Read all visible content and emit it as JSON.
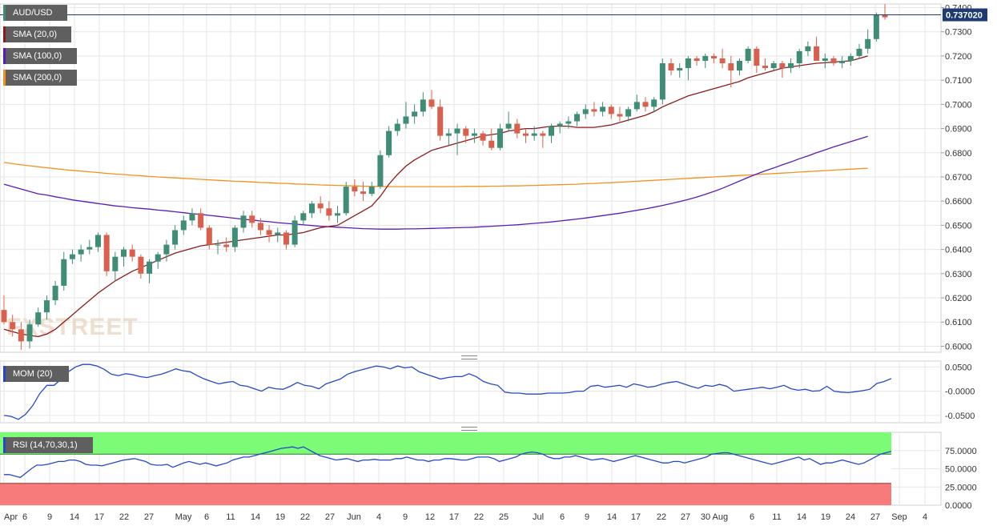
{
  "colors": {
    "up": "#3f8c77",
    "down": "#d9604c",
    "sma20": "#8b1c1c",
    "sma100": "#5b1bb8",
    "sma200": "#f2921e",
    "mom": "#2448c8",
    "rsi": "#2448c8",
    "rsi_overbought": "#7cfc76",
    "rsi_oversold": "#f77b7b",
    "price_tag": "#1f3b73",
    "legend_bg": "#5f5f5f",
    "grid": "#e6e6e6"
  },
  "legend": {
    "symbol": "AUD/USD",
    "sma20": "SMA (20,0)",
    "sma100": "SMA (100,0)",
    "sma200": "SMA (200,0)",
    "mom": "MOM (20)",
    "rsi": "RSI (14,70,30,1)"
  },
  "watermark": "FXSTREET",
  "current_price": "0.737020",
  "chart_data": [
    {
      "type": "candlestick",
      "title": "AUD/USD",
      "ylim": [
        0.5975,
        0.7415
      ],
      "yticks": [
        "0.7400",
        "0.7300",
        "0.7200",
        "0.7100",
        "0.7000",
        "0.6900",
        "0.6800",
        "0.6700",
        "0.6600",
        "0.6500",
        "0.6400",
        "0.6300",
        "0.6200",
        "0.6100",
        "0.6000"
      ],
      "x_labels": [
        "Apr",
        "6",
        "9",
        "14",
        "17",
        "22",
        "27",
        "May",
        "6",
        "11",
        "14",
        "19",
        "22",
        "27",
        "Jun",
        "4",
        "9",
        "12",
        "17",
        "22",
        "25",
        "Jul",
        "6",
        "9",
        "14",
        "17",
        "22",
        "27",
        "30 Aug",
        "6",
        "11",
        "14",
        "19",
        "24",
        "27",
        "Sep",
        "4"
      ],
      "candles": [
        [
          0.615,
          0.621,
          0.609,
          0.61
        ],
        [
          0.61,
          0.613,
          0.604,
          0.607
        ],
        [
          0.607,
          0.61,
          0.5985,
          0.602
        ],
        [
          0.602,
          0.611,
          0.599,
          0.609
        ],
        [
          0.609,
          0.616,
          0.608,
          0.614
        ],
        [
          0.614,
          0.621,
          0.611,
          0.619
        ],
        [
          0.619,
          0.627,
          0.617,
          0.625
        ],
        [
          0.625,
          0.639,
          0.623,
          0.636
        ],
        [
          0.636,
          0.64,
          0.634,
          0.638
        ],
        [
          0.638,
          0.642,
          0.635,
          0.64
        ],
        [
          0.64,
          0.644,
          0.638,
          0.641
        ],
        [
          0.641,
          0.647,
          0.639,
          0.646
        ],
        [
          0.646,
          0.647,
          0.629,
          0.631
        ],
        [
          0.631,
          0.639,
          0.627,
          0.637
        ],
        [
          0.637,
          0.641,
          0.633,
          0.64
        ],
        [
          0.64,
          0.642,
          0.635,
          0.637
        ],
        [
          0.637,
          0.638,
          0.628,
          0.63
        ],
        [
          0.63,
          0.636,
          0.626,
          0.635
        ],
        [
          0.635,
          0.639,
          0.632,
          0.638
        ],
        [
          0.638,
          0.644,
          0.635,
          0.642
        ],
        [
          0.642,
          0.65,
          0.64,
          0.648
        ],
        [
          0.648,
          0.654,
          0.646,
          0.652
        ],
        [
          0.652,
          0.657,
          0.65,
          0.655
        ],
        [
          0.655,
          0.657,
          0.648,
          0.649
        ],
        [
          0.649,
          0.65,
          0.64,
          0.642
        ],
        [
          0.642,
          0.644,
          0.638,
          0.642
        ],
        [
          0.642,
          0.645,
          0.639,
          0.641
        ],
        [
          0.641,
          0.65,
          0.639,
          0.649
        ],
        [
          0.649,
          0.656,
          0.647,
          0.654
        ],
        [
          0.654,
          0.656,
          0.649,
          0.651
        ],
        [
          0.651,
          0.653,
          0.646,
          0.648
        ],
        [
          0.648,
          0.65,
          0.643,
          0.646
        ],
        [
          0.646,
          0.649,
          0.643,
          0.647
        ],
        [
          0.647,
          0.648,
          0.64,
          0.642
        ],
        [
          0.642,
          0.654,
          0.641,
          0.652
        ],
        [
          0.652,
          0.656,
          0.65,
          0.655
        ],
        [
          0.655,
          0.66,
          0.653,
          0.659
        ],
        [
          0.659,
          0.662,
          0.655,
          0.657
        ],
        [
          0.657,
          0.66,
          0.652,
          0.654
        ],
        [
          0.654,
          0.658,
          0.651,
          0.655
        ],
        [
          0.655,
          0.668,
          0.654,
          0.666
        ],
        [
          0.666,
          0.669,
          0.662,
          0.664
        ],
        [
          0.664,
          0.668,
          0.66,
          0.663
        ],
        [
          0.663,
          0.668,
          0.662,
          0.666
        ],
        [
          0.666,
          0.681,
          0.665,
          0.679
        ],
        [
          0.679,
          0.691,
          0.678,
          0.689
        ],
        [
          0.689,
          0.694,
          0.687,
          0.692
        ],
        [
          0.692,
          0.701,
          0.69,
          0.695
        ],
        [
          0.695,
          0.7,
          0.692,
          0.697
        ],
        [
          0.697,
          0.705,
          0.695,
          0.702
        ],
        [
          0.702,
          0.706,
          0.698,
          0.699
        ],
        [
          0.699,
          0.702,
          0.685,
          0.687
        ],
        [
          0.687,
          0.69,
          0.683,
          0.688
        ],
        [
          0.688,
          0.692,
          0.679,
          0.69
        ],
        [
          0.69,
          0.691,
          0.684,
          0.687
        ],
        [
          0.687,
          0.69,
          0.684,
          0.688
        ],
        [
          0.688,
          0.689,
          0.683,
          0.685
        ],
        [
          0.685,
          0.69,
          0.681,
          0.682
        ],
        [
          0.682,
          0.692,
          0.681,
          0.69
        ],
        [
          0.69,
          0.697,
          0.689,
          0.692
        ],
        [
          0.692,
          0.694,
          0.686,
          0.688
        ],
        [
          0.688,
          0.69,
          0.684,
          0.687
        ],
        [
          0.687,
          0.691,
          0.685,
          0.688
        ],
        [
          0.688,
          0.689,
          0.682,
          0.687
        ],
        [
          0.687,
          0.692,
          0.684,
          0.691
        ],
        [
          0.691,
          0.693,
          0.688,
          0.692
        ],
        [
          0.692,
          0.695,
          0.69,
          0.693
        ],
        [
          0.693,
          0.697,
          0.691,
          0.696
        ],
        [
          0.696,
          0.7,
          0.694,
          0.698
        ],
        [
          0.698,
          0.701,
          0.695,
          0.697
        ],
        [
          0.697,
          0.701,
          0.695,
          0.699
        ],
        [
          0.699,
          0.7,
          0.694,
          0.696
        ],
        [
          0.696,
          0.699,
          0.693,
          0.695
        ],
        [
          0.695,
          0.699,
          0.693,
          0.698
        ],
        [
          0.698,
          0.704,
          0.697,
          0.701
        ],
        [
          0.701,
          0.703,
          0.697,
          0.699
        ],
        [
          0.699,
          0.703,
          0.697,
          0.702
        ],
        [
          0.702,
          0.719,
          0.7,
          0.717
        ],
        [
          0.717,
          0.719,
          0.712,
          0.714
        ],
        [
          0.714,
          0.717,
          0.711,
          0.715
        ],
        [
          0.715,
          0.72,
          0.71,
          0.719
        ],
        [
          0.719,
          0.72,
          0.716,
          0.718
        ],
        [
          0.718,
          0.721,
          0.715,
          0.72
        ],
        [
          0.72,
          0.721,
          0.717,
          0.719
        ],
        [
          0.719,
          0.723,
          0.715,
          0.717
        ],
        [
          0.717,
          0.72,
          0.707,
          0.714
        ],
        [
          0.714,
          0.719,
          0.712,
          0.718
        ],
        [
          0.718,
          0.724,
          0.717,
          0.723
        ],
        [
          0.723,
          0.724,
          0.713,
          0.716
        ],
        [
          0.716,
          0.719,
          0.714,
          0.715
        ],
        [
          0.715,
          0.718,
          0.714,
          0.717
        ],
        [
          0.717,
          0.718,
          0.711,
          0.715
        ],
        [
          0.715,
          0.719,
          0.713,
          0.717
        ],
        [
          0.717,
          0.723,
          0.715,
          0.722
        ],
        [
          0.722,
          0.726,
          0.72,
          0.724
        ],
        [
          0.724,
          0.728,
          0.718,
          0.718
        ],
        [
          0.718,
          0.721,
          0.715,
          0.719
        ],
        [
          0.719,
          0.72,
          0.716,
          0.717
        ],
        [
          0.717,
          0.72,
          0.715,
          0.718
        ],
        [
          0.718,
          0.721,
          0.716,
          0.72
        ],
        [
          0.72,
          0.725,
          0.719,
          0.723
        ],
        [
          0.723,
          0.731,
          0.721,
          0.727
        ],
        [
          0.727,
          0.738,
          0.726,
          0.737
        ],
        [
          0.737,
          0.7415,
          0.735,
          0.736
        ]
      ],
      "sma20": [
        0.607,
        0.606,
        0.605,
        0.6045,
        0.604,
        0.605,
        0.607,
        0.61,
        0.613,
        0.616,
        0.619,
        0.622,
        0.6245,
        0.627,
        0.629,
        0.631,
        0.6325,
        0.634,
        0.6355,
        0.637,
        0.6385,
        0.6395,
        0.6405,
        0.6415,
        0.642,
        0.6425,
        0.643,
        0.6435,
        0.644,
        0.6445,
        0.645,
        0.6455,
        0.646,
        0.646,
        0.6465,
        0.647,
        0.648,
        0.649,
        0.6495,
        0.65,
        0.652,
        0.654,
        0.656,
        0.658,
        0.662,
        0.667,
        0.671,
        0.6745,
        0.677,
        0.679,
        0.681,
        0.682,
        0.683,
        0.684,
        0.685,
        0.686,
        0.687,
        0.6875,
        0.688,
        0.689,
        0.6895,
        0.69,
        0.69,
        0.6905,
        0.691,
        0.691,
        0.691,
        0.6905,
        0.6905,
        0.6905,
        0.691,
        0.6915,
        0.6925,
        0.6935,
        0.6945,
        0.6955,
        0.697,
        0.699,
        0.7005,
        0.702,
        0.7035,
        0.7045,
        0.7055,
        0.7065,
        0.7075,
        0.7085,
        0.7095,
        0.711,
        0.712,
        0.713,
        0.714,
        0.715,
        0.7155,
        0.716,
        0.7165,
        0.717,
        0.7172,
        0.7175,
        0.7178,
        0.718,
        0.719,
        0.72
      ],
      "sma100": [
        0.667,
        0.666,
        0.665,
        0.664,
        0.663,
        0.6625,
        0.6618,
        0.6612,
        0.6605,
        0.66,
        0.6595,
        0.659,
        0.6585,
        0.658,
        0.6577,
        0.6573,
        0.657,
        0.6567,
        0.6563,
        0.656,
        0.6556,
        0.6552,
        0.6548,
        0.6545,
        0.6541,
        0.6537,
        0.6533,
        0.6529,
        0.6525,
        0.6522,
        0.6518,
        0.6515,
        0.6511,
        0.6508,
        0.6505,
        0.6502,
        0.6499,
        0.6496,
        0.6494,
        0.6492,
        0.649,
        0.6488,
        0.6486,
        0.6485,
        0.6484,
        0.6484,
        0.6484,
        0.6485,
        0.6485,
        0.6486,
        0.6487,
        0.6488,
        0.6489,
        0.649,
        0.6491,
        0.6492,
        0.6494,
        0.6496,
        0.6498,
        0.65,
        0.6502,
        0.6505,
        0.6508,
        0.6511,
        0.6514,
        0.6518,
        0.6522,
        0.6526,
        0.653,
        0.6535,
        0.654,
        0.6545,
        0.655,
        0.6556,
        0.6562,
        0.6568,
        0.6575,
        0.6582,
        0.659,
        0.6598,
        0.6607,
        0.6617,
        0.6628,
        0.664,
        0.6653,
        0.6668,
        0.6683,
        0.6698,
        0.6712,
        0.6725,
        0.6737,
        0.675,
        0.6762,
        0.6775,
        0.6787,
        0.68,
        0.6812,
        0.6824,
        0.6835,
        0.6846,
        0.6857,
        0.6868
      ],
      "sma200": [
        0.676,
        0.6755,
        0.675,
        0.6746,
        0.6742,
        0.6738,
        0.6734,
        0.673,
        0.6727,
        0.6724,
        0.6721,
        0.6718,
        0.6715,
        0.6712,
        0.671,
        0.6707,
        0.6705,
        0.6702,
        0.67,
        0.6698,
        0.6696,
        0.6694,
        0.6692,
        0.669,
        0.6688,
        0.6686,
        0.6684,
        0.6682,
        0.6681,
        0.6679,
        0.6677,
        0.6676,
        0.6674,
        0.6673,
        0.6671,
        0.667,
        0.6669,
        0.6667,
        0.6666,
        0.6665,
        0.6664,
        0.6663,
        0.6662,
        0.6661,
        0.6661,
        0.666,
        0.666,
        0.666,
        0.666,
        0.666,
        0.666,
        0.666,
        0.666,
        0.666,
        0.6661,
        0.6661,
        0.6661,
        0.6662,
        0.6662,
        0.6663,
        0.6663,
        0.6664,
        0.6665,
        0.6666,
        0.6667,
        0.6668,
        0.6669,
        0.667,
        0.6672,
        0.6673,
        0.6675,
        0.6676,
        0.6678,
        0.668,
        0.6682,
        0.6684,
        0.6686,
        0.6688,
        0.669,
        0.6692,
        0.6694,
        0.6696,
        0.6698,
        0.67,
        0.6702,
        0.6704,
        0.6706,
        0.6708,
        0.671,
        0.6712,
        0.6714,
        0.6716,
        0.6718,
        0.672,
        0.6722,
        0.6724,
        0.6726,
        0.6728,
        0.673,
        0.6732,
        0.6734,
        0.6736
      ]
    },
    {
      "type": "line",
      "title": "MOM (20)",
      "ylim": [
        -0.065,
        0.062
      ],
      "yticks": [
        "0.0500",
        "-0.0000",
        "-0.0500"
      ],
      "values": [
        -0.05,
        -0.052,
        -0.058,
        -0.048,
        -0.03,
        -0.005,
        0.012,
        0.012,
        0.025,
        0.04,
        0.05,
        0.055,
        0.055,
        0.052,
        0.045,
        0.035,
        0.032,
        0.036,
        0.034,
        0.03,
        0.028,
        0.032,
        0.035,
        0.04,
        0.046,
        0.042,
        0.04,
        0.032,
        0.025,
        0.02,
        0.015,
        0.018,
        0.02,
        0.012,
        0.01,
        0.005,
        0.0,
        0.008,
        0.005,
        0.004,
        0.01,
        0.018,
        0.012,
        0.01,
        0.005,
        0.015,
        0.02,
        0.025,
        0.035,
        0.04,
        0.044,
        0.048,
        0.052,
        0.05,
        0.046,
        0.052,
        0.048,
        0.05,
        0.04,
        0.035,
        0.03,
        0.025,
        0.028,
        0.03,
        0.03,
        0.036,
        0.03,
        0.02,
        0.015,
        0.012,
        -0.002,
        -0.004,
        -0.004,
        -0.006,
        -0.006,
        -0.006,
        -0.004,
        -0.004,
        -0.004,
        -0.003,
        0.0,
        0.0,
        0.01,
        0.012,
        0.008,
        0.01,
        0.012,
        0.008,
        0.015,
        0.012,
        0.008,
        0.01,
        0.015,
        0.018,
        0.02,
        0.015,
        0.01,
        0.006,
        0.012,
        0.01,
        0.014,
        0.01
      ],
      "tail": [
        0.0,
        0.002,
        0.004,
        0.006,
        0.008,
        0.005,
        0.008,
        0.012,
        0.005,
        0.002,
        0.004,
        0.0,
        0.001,
        0.01,
        0.0,
        -0.002,
        -0.003,
        -0.001,
        0.001,
        0.004,
        0.016,
        0.02,
        0.026
      ]
    },
    {
      "type": "line",
      "title": "RSI (14,70,30,1)",
      "ylim": [
        0,
        100
      ],
      "yticks": [
        "75.0000",
        "50.0000",
        "25.0000",
        "0.0000"
      ],
      "bands": {
        "overbought": 70,
        "oversold": 30
      },
      "values": [
        42,
        42,
        40,
        38,
        44,
        50,
        55,
        55,
        56,
        58,
        60,
        60,
        62,
        62,
        60,
        56,
        55,
        55,
        54,
        56,
        58,
        60,
        62,
        63,
        64,
        62,
        60,
        56,
        55,
        55,
        56,
        52,
        55,
        58,
        60,
        58,
        56,
        58,
        56,
        54,
        56,
        58,
        62,
        64,
        66,
        66,
        68,
        70,
        72,
        74,
        76,
        78,
        79,
        80,
        78,
        80,
        76,
        72,
        68,
        66,
        64,
        62,
        63,
        64,
        62,
        60,
        62,
        62,
        63,
        62,
        62,
        62,
        64,
        64,
        66,
        64,
        62,
        62,
        60,
        62,
        62,
        64,
        64,
        63,
        62,
        62,
        64,
        66,
        66,
        66,
        64,
        60,
        62,
        64,
        66,
        70,
        72,
        73,
        72,
        70,
        66,
        64,
        64,
        66,
        66,
        68,
        66,
        64,
        62,
        63,
        64,
        62,
        60,
        62,
        64,
        66,
        68,
        66,
        64,
        62,
        60,
        58,
        58,
        60,
        60,
        58,
        60,
        62,
        64,
        66,
        70,
        71,
        72,
        72,
        70,
        68,
        66,
        64,
        62,
        60,
        58,
        56,
        58,
        60,
        62,
        64,
        66,
        62,
        64,
        60,
        56,
        58,
        58,
        60,
        62,
        60,
        58,
        56,
        58,
        62,
        66,
        70,
        72,
        74
      ]
    }
  ]
}
